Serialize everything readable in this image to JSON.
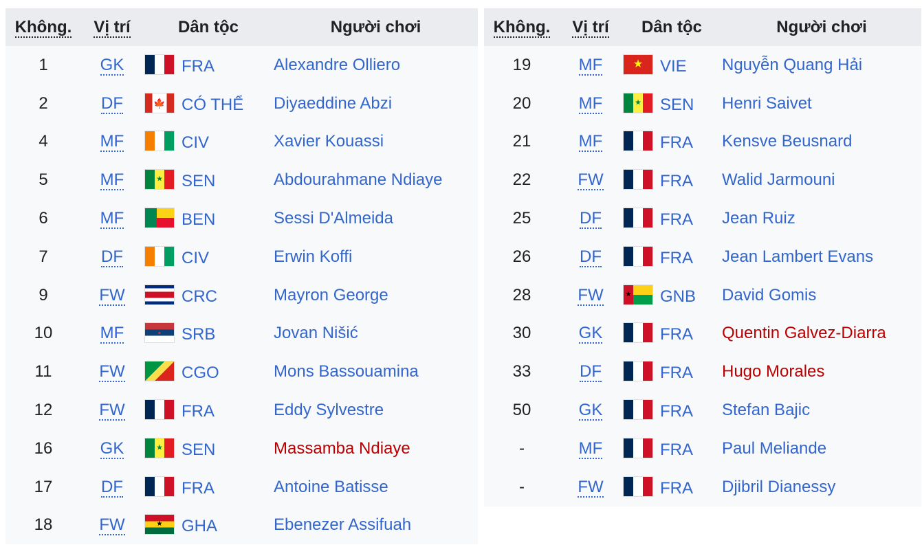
{
  "headers": {
    "number": "Không.",
    "position": "Vị trí",
    "nation": "Dân tộc",
    "player": "Người chơi"
  },
  "left": [
    {
      "no": "1",
      "pos": "GK",
      "nat": "FRA",
      "player": "Alexandre Olliero",
      "red": false
    },
    {
      "no": "2",
      "pos": "DF",
      "nat": "CÓ THỂ",
      "flag": "CAN",
      "player": "Diyaeddine Abzi",
      "red": false
    },
    {
      "no": "4",
      "pos": "MF",
      "nat": "CIV",
      "player": "Xavier Kouassi",
      "red": false
    },
    {
      "no": "5",
      "pos": "MF",
      "nat": "SEN",
      "player": "Abdourahmane Ndiaye",
      "red": false
    },
    {
      "no": "6",
      "pos": "MF",
      "nat": "BEN",
      "player": "Sessi D'Almeida",
      "red": false
    },
    {
      "no": "7",
      "pos": "DF",
      "nat": "CIV",
      "player": "Erwin Koffi",
      "red": false
    },
    {
      "no": "9",
      "pos": "FW",
      "nat": "CRC",
      "player": "Mayron George",
      "red": false
    },
    {
      "no": "10",
      "pos": "MF",
      "nat": "SRB",
      "player": "Jovan Nišić",
      "red": false
    },
    {
      "no": "11",
      "pos": "FW",
      "nat": "CGO",
      "player": "Mons Bassouamina",
      "red": false
    },
    {
      "no": "12",
      "pos": "FW",
      "nat": "FRA",
      "player": "Eddy Sylvestre",
      "red": false
    },
    {
      "no": "16",
      "pos": "GK",
      "nat": "SEN",
      "player": "Massamba Ndiaye",
      "red": true
    },
    {
      "no": "17",
      "pos": "DF",
      "nat": "FRA",
      "player": "Antoine Batisse",
      "red": false
    },
    {
      "no": "18",
      "pos": "FW",
      "nat": "GHA",
      "player": "Ebenezer Assifuah",
      "red": false
    }
  ],
  "right": [
    {
      "no": "19",
      "pos": "MF",
      "nat": "VIE",
      "player": "Nguyễn Quang Hải",
      "red": false
    },
    {
      "no": "20",
      "pos": "MF",
      "nat": "SEN",
      "player": "Henri Saivet",
      "red": false
    },
    {
      "no": "21",
      "pos": "MF",
      "nat": "FRA",
      "player": "Kensve Beusnard",
      "red": false
    },
    {
      "no": "22",
      "pos": "FW",
      "nat": "FRA",
      "player": "Walid Jarmouni",
      "red": false
    },
    {
      "no": "25",
      "pos": "DF",
      "nat": "FRA",
      "player": "Jean Ruiz",
      "red": false
    },
    {
      "no": "26",
      "pos": "DF",
      "nat": "FRA",
      "player": "Jean Lambert Evans",
      "red": false
    },
    {
      "no": "28",
      "pos": "FW",
      "nat": "GNB",
      "player": "David Gomis",
      "red": false
    },
    {
      "no": "30",
      "pos": "GK",
      "nat": "FRA",
      "player": "Quentin Galvez-Diarra",
      "red": true
    },
    {
      "no": "33",
      "pos": "DF",
      "nat": "FRA",
      "player": "Hugo Morales",
      "red": true
    },
    {
      "no": "50",
      "pos": "GK",
      "nat": "FRA",
      "player": "Stefan Bajic",
      "red": false
    },
    {
      "no": "-",
      "pos": "MF",
      "nat": "FRA",
      "player": "Paul Meliande",
      "red": false
    },
    {
      "no": "-",
      "pos": "FW",
      "nat": "FRA",
      "player": "Djibril Dianessy",
      "red": false
    }
  ],
  "colors": {
    "link": "#3366cc",
    "redlink": "#ba0000",
    "header_bg": "#eaecf0",
    "table_bg": "#f8f9fa"
  }
}
